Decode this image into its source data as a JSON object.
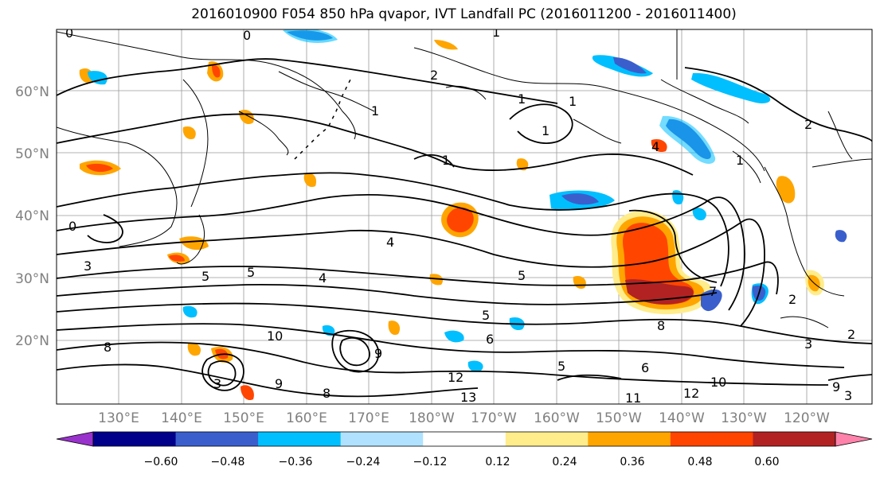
{
  "title": "2016010900 F054 850 hPa qvapor, IVT Landfall PC (2016011200 - 2016011400)",
  "map": {
    "lat_labels": [
      "60°N",
      "50°N",
      "40°N",
      "30°N",
      "20°N"
    ],
    "lon_labels": [
      "130°E",
      "140°E",
      "150°E",
      "160°E",
      "170°E",
      "180°W",
      "170°W",
      "160°W",
      "150°W",
      "140°W",
      "130°W",
      "120°W"
    ],
    "contour_labels": [
      "0",
      "1",
      "0",
      "1",
      "2",
      "1",
      "1",
      "2",
      "1",
      "1",
      "0",
      "3",
      "5",
      "5",
      "4",
      "5",
      "4",
      "5",
      "6",
      "8",
      "10",
      "12",
      "13",
      "8",
      "11",
      "12",
      "10",
      "3",
      "9",
      "2",
      "3",
      "2",
      "6",
      "9",
      "8",
      "4",
      "1",
      "7",
      "3",
      "5",
      "9"
    ]
  },
  "colorbar": {
    "tick_labels": [
      "−0.60",
      "−0.48",
      "−0.36",
      "−0.24",
      "−0.12",
      "0.12",
      "0.24",
      "0.36",
      "0.48",
      "0.60"
    ],
    "colors": [
      "#9932cc",
      "#00008b",
      "#3a5fcd",
      "#00bfff",
      "#b0e2ff",
      "#ffffff",
      "#ffec8b",
      "#ffa500",
      "#ff4500",
      "#b22222",
      "#ff82ab"
    ]
  }
}
